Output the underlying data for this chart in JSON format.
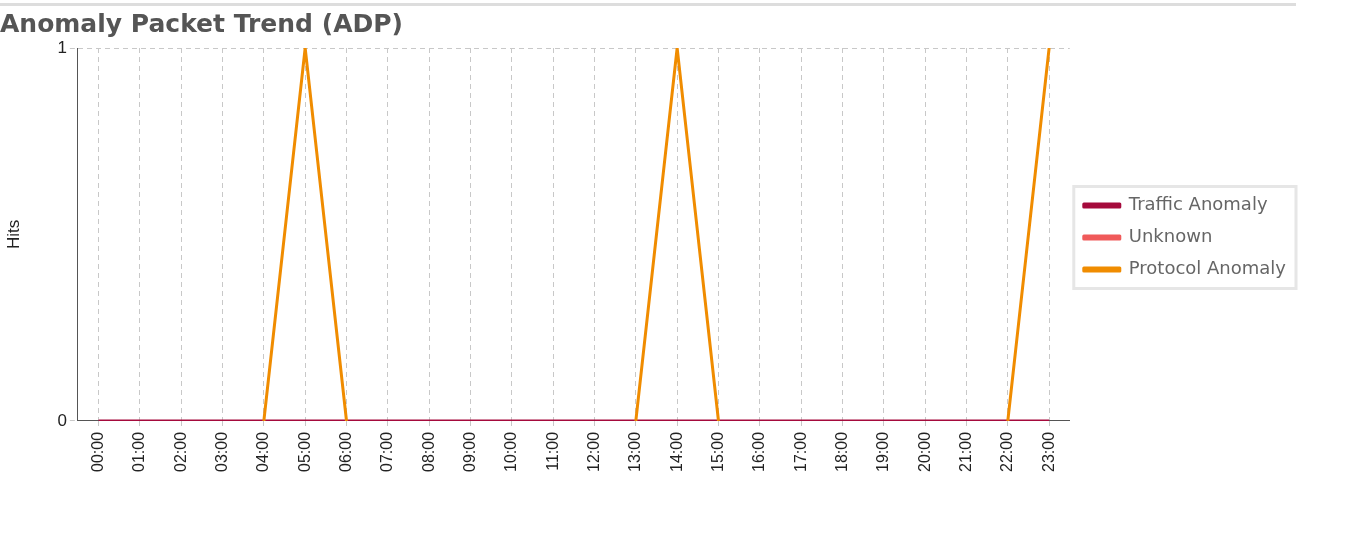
{
  "chart_data": {
    "type": "line",
    "title": "Anomaly Packet Trend (ADP)",
    "ylabel": "Hits",
    "categories": [
      "00:00",
      "01:00",
      "02:00",
      "03:00",
      "04:00",
      "05:00",
      "06:00",
      "07:00",
      "08:00",
      "09:00",
      "10:00",
      "11:00",
      "12:00",
      "13:00",
      "14:00",
      "15:00",
      "16:00",
      "17:00",
      "18:00",
      "19:00",
      "20:00",
      "21:00",
      "22:00",
      "23:00"
    ],
    "series": [
      {
        "name": "Traffic Anomaly",
        "color": "#a50a3c",
        "values": [
          0,
          0,
          0,
          0,
          0,
          0,
          0,
          0,
          0,
          0,
          0,
          0,
          0,
          0,
          0,
          0,
          0,
          0,
          0,
          0,
          0,
          0,
          0,
          0
        ]
      },
      {
        "name": "Unknown",
        "color": "#f05a5a",
        "values": [
          null,
          null,
          null,
          null,
          null,
          null,
          null,
          null,
          null,
          null,
          null,
          null,
          null,
          null,
          null,
          null,
          null,
          null,
          null,
          null,
          null,
          null,
          null,
          null
        ]
      },
      {
        "name": "Protocol Anomaly",
        "color": "#f08c00",
        "values": [
          null,
          null,
          null,
          null,
          0,
          1,
          0,
          null,
          null,
          null,
          null,
          null,
          null,
          0,
          1,
          0,
          null,
          null,
          null,
          null,
          null,
          null,
          0,
          1
        ]
      }
    ],
    "ylim": [
      0,
      1
    ],
    "yticks": [
      0,
      1
    ],
    "grid": true,
    "legend": "right",
    "marker": "none",
    "line_style": "solid"
  }
}
